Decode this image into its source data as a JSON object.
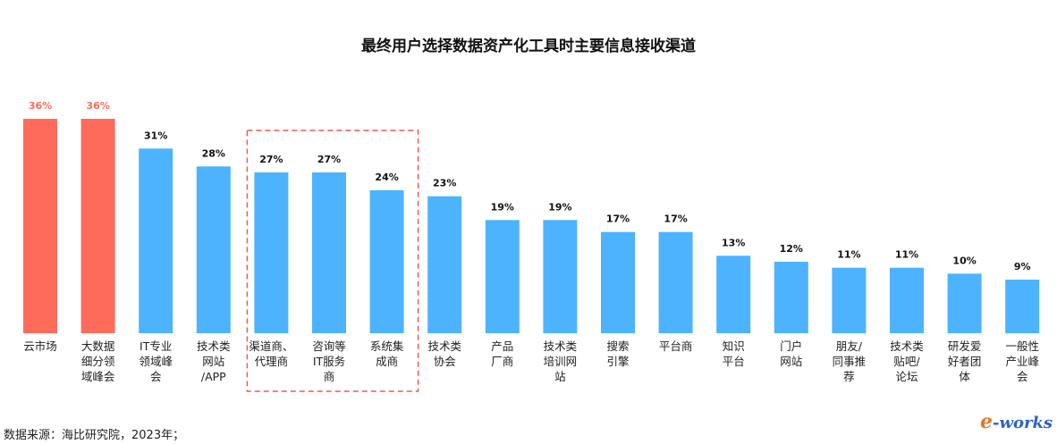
{
  "chart_data": {
    "type": "bar",
    "title": "最终用户选择数据资产化工具时主要信息接收渠道",
    "categories": [
      [
        "云市场"
      ],
      [
        "大数据",
        "细分领",
        "域峰会"
      ],
      [
        "IT专业",
        "领域峰",
        "会"
      ],
      [
        "技术类",
        "网站",
        "/APP"
      ],
      [
        "渠道商、",
        "代理商"
      ],
      [
        "咨询等",
        "IT服务",
        "商"
      ],
      [
        "系统集",
        "成商"
      ],
      [
        "技术类",
        "协会"
      ],
      [
        "产品",
        "厂商"
      ],
      [
        "技术类",
        "培训网",
        "站"
      ],
      [
        "搜索",
        "引擎"
      ],
      [
        "平台商"
      ],
      [
        "知识",
        "平台"
      ],
      [
        "门户",
        "网站"
      ],
      [
        "朋友/",
        "同事推",
        "荐"
      ],
      [
        "技术类",
        "贴吧/",
        "论坛"
      ],
      [
        "研发爱",
        "好者团",
        "体"
      ],
      [
        "一般性",
        "产业峰",
        "会"
      ]
    ],
    "values": [
      36,
      36,
      31,
      28,
      27,
      27,
      24,
      23,
      19,
      19,
      17,
      17,
      13,
      12,
      11,
      11,
      10,
      9
    ],
    "value_labels": [
      "36%",
      "36%",
      "31%",
      "28%",
      "27%",
      "27%",
      "24%",
      "23%",
      "19%",
      "19%",
      "17%",
      "17%",
      "13%",
      "12%",
      "11%",
      "11%",
      "10%",
      "9%"
    ],
    "highlight_indices": [
      0,
      1
    ],
    "boxed_indices": [
      4,
      5,
      6
    ],
    "ylim": [
      0,
      40
    ],
    "grid": false,
    "colors": {
      "bar": "#4db3ff",
      "highlight_bar": "#ff6b5b",
      "highlight_label": "#ff6b5b",
      "label": "#111111",
      "box": "#f05a50"
    }
  },
  "source": "数据来源：海比研究院，2023年；",
  "logo": {
    "prefix": "e",
    "suffix": "-works"
  }
}
